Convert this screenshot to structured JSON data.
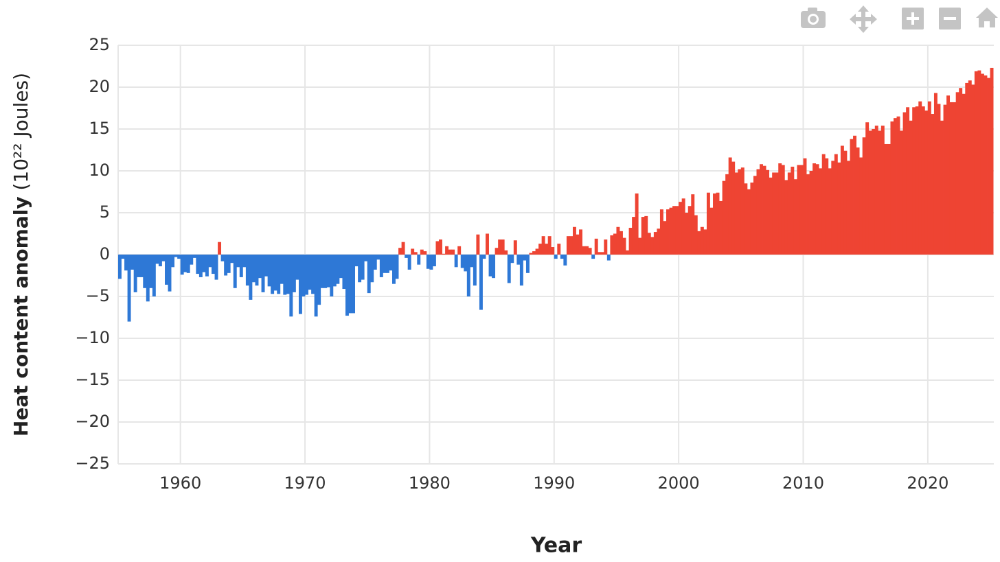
{
  "chart_data": {
    "type": "bar",
    "x_label": "Year",
    "y_label": "Heat content anomaly",
    "y_unit": "(10²² Joules)",
    "positive_color": "#ee4433",
    "negative_color": "#2e78d6",
    "grid": true,
    "xlim": [
      1955,
      2025.3
    ],
    "ylim": [
      -25,
      25
    ],
    "xticks": [
      1960,
      1970,
      1980,
      1990,
      2000,
      2010,
      2020
    ],
    "yticks": [
      {
        "value": -25,
        "label": "−25"
      },
      {
        "value": -20,
        "label": "−20"
      },
      {
        "value": -15,
        "label": "−15"
      },
      {
        "value": -10,
        "label": "−10"
      },
      {
        "value": -5,
        "label": "−5"
      },
      0,
      5,
      10,
      15,
      20,
      25
    ],
    "x": [
      1955.125,
      1955.375,
      1955.625,
      1955.875,
      1956.125,
      1956.375,
      1956.625,
      1956.875,
      1957.125,
      1957.375,
      1957.625,
      1957.875,
      1958.125,
      1958.375,
      1958.625,
      1958.875,
      1959.125,
      1959.375,
      1959.625,
      1959.875,
      1960.125,
      1960.375,
      1960.625,
      1960.875,
      1961.125,
      1961.375,
      1961.625,
      1961.875,
      1962.125,
      1962.375,
      1962.625,
      1962.875,
      1963.125,
      1963.375,
      1963.625,
      1963.875,
      1964.125,
      1964.375,
      1964.625,
      1964.875,
      1965.125,
      1965.375,
      1965.625,
      1965.875,
      1966.125,
      1966.375,
      1966.625,
      1966.875,
      1967.125,
      1967.375,
      1967.625,
      1967.875,
      1968.125,
      1968.375,
      1968.625,
      1968.875,
      1969.125,
      1969.375,
      1969.625,
      1969.875,
      1970.125,
      1970.375,
      1970.625,
      1970.875,
      1971.125,
      1971.375,
      1971.625,
      1971.875,
      1972.125,
      1972.375,
      1972.625,
      1972.875,
      1973.125,
      1973.375,
      1973.625,
      1973.875,
      1974.125,
      1974.375,
      1974.625,
      1974.875,
      1975.125,
      1975.375,
      1975.625,
      1975.875,
      1976.125,
      1976.375,
      1976.625,
      1976.875,
      1977.125,
      1977.375,
      1977.625,
      1977.875,
      1978.125,
      1978.375,
      1978.625,
      1978.875,
      1979.125,
      1979.375,
      1979.625,
      1979.875,
      1980.125,
      1980.375,
      1980.625,
      1980.875,
      1981.125,
      1981.375,
      1981.625,
      1981.875,
      1982.125,
      1982.375,
      1982.625,
      1982.875,
      1983.125,
      1983.375,
      1983.625,
      1983.875,
      1984.125,
      1984.375,
      1984.625,
      1984.875,
      1985.125,
      1985.375,
      1985.625,
      1985.875,
      1986.125,
      1986.375,
      1986.625,
      1986.875,
      1987.125,
      1987.375,
      1987.625,
      1987.875,
      1988.125,
      1988.375,
      1988.625,
      1988.875,
      1989.125,
      1989.375,
      1989.625,
      1989.875,
      1990.125,
      1990.375,
      1990.625,
      1990.875,
      1991.125,
      1991.375,
      1991.625,
      1991.875,
      1992.125,
      1992.375,
      1992.625,
      1992.875,
      1993.125,
      1993.375,
      1993.625,
      1993.875,
      1994.125,
      1994.375,
      1994.625,
      1994.875,
      1995.125,
      1995.375,
      1995.625,
      1995.875,
      1996.125,
      1996.375,
      1996.625,
      1996.875,
      1997.125,
      1997.375,
      1997.625,
      1997.875,
      1998.125,
      1998.375,
      1998.625,
      1998.875,
      1999.125,
      1999.375,
      1999.625,
      1999.875,
      2000.125,
      2000.375,
      2000.625,
      2000.875,
      2001.125,
      2001.375,
      2001.625,
      2001.875,
      2002.125,
      2002.375,
      2002.625,
      2002.875,
      2003.125,
      2003.375,
      2003.625,
      2003.875,
      2004.125,
      2004.375,
      2004.625,
      2004.875,
      2005.125,
      2005.375,
      2005.625,
      2005.875,
      2006.125,
      2006.375,
      2006.625,
      2006.875,
      2007.125,
      2007.375,
      2007.625,
      2007.875,
      2008.125,
      2008.375,
      2008.625,
      2008.875,
      2009.125,
      2009.375,
      2009.625,
      2009.875,
      2010.125,
      2010.375,
      2010.625,
      2010.875,
      2011.125,
      2011.375,
      2011.625,
      2011.875,
      2012.125,
      2012.375,
      2012.625,
      2012.875,
      2013.125,
      2013.375,
      2013.625,
      2013.875,
      2014.125,
      2014.375,
      2014.625,
      2014.875,
      2015.125,
      2015.375,
      2015.625,
      2015.875,
      2016.125,
      2016.375,
      2016.625,
      2016.875,
      2017.125,
      2017.375,
      2017.625,
      2017.875,
      2018.125,
      2018.375,
      2018.625,
      2018.875,
      2019.125,
      2019.375,
      2019.625,
      2019.875,
      2020.125,
      2020.375,
      2020.625,
      2020.875,
      2021.125,
      2021.375,
      2021.625,
      2021.875,
      2022.125,
      2022.375,
      2022.625,
      2022.875,
      2023.125,
      2023.375,
      2023.625,
      2023.875,
      2024.125,
      2024.375,
      2024.625,
      2024.875,
      2025.125
    ],
    "values": [
      -2.9,
      -0.5,
      -1.9,
      -8.0,
      -1.8,
      -4.5,
      -2.7,
      -2.7,
      -4.0,
      -5.6,
      -4.0,
      -5.0,
      -1.1,
      -1.4,
      -0.8,
      -3.6,
      -4.4,
      -1.5,
      -0.3,
      -0.5,
      -2.4,
      -2.1,
      -2.2,
      -1.2,
      -0.4,
      -2.3,
      -2.7,
      -2.1,
      -2.6,
      -1.5,
      -2.3,
      -3.0,
      1.5,
      -0.8,
      -2.5,
      -2.2,
      -1.0,
      -4.0,
      -1.5,
      -2.7,
      -1.5,
      -3.7,
      -5.4,
      -3.3,
      -3.7,
      -2.8,
      -4.5,
      -2.6,
      -3.8,
      -4.7,
      -4.3,
      -4.7,
      -3.5,
      -4.8,
      -4.7,
      -7.4,
      -4.5,
      -3.0,
      -7.1,
      -5.0,
      -4.8,
      -4.2,
      -4.7,
      -7.4,
      -6.0,
      -4.0,
      -4.0,
      -3.9,
      -5.0,
      -3.8,
      -3.5,
      -2.8,
      -4.1,
      -7.3,
      -7.0,
      -7.0,
      -1.4,
      -3.3,
      -3.0,
      -0.8,
      -4.6,
      -3.3,
      -1.8,
      -0.6,
      -2.7,
      -2.2,
      -2.2,
      -1.9,
      -3.5,
      -2.9,
      0.8,
      1.5,
      -0.4,
      -1.8,
      0.7,
      0.3,
      -1.2,
      0.6,
      0.4,
      -1.7,
      -1.8,
      -1.4,
      1.6,
      1.8,
      0.1,
      1.0,
      0.6,
      0.6,
      -1.5,
      1.0,
      -1.6,
      -2.0,
      -5.0,
      -1.5,
      -3.7,
      2.4,
      -6.6,
      -0.5,
      2.5,
      -2.6,
      -2.8,
      0.8,
      1.8,
      1.8,
      0.5,
      -3.4,
      -1.0,
      1.7,
      -1.2,
      -3.7,
      -0.7,
      -2.2,
      0.2,
      0.4,
      0.7,
      1.3,
      2.2,
      1.3,
      2.2,
      0.9,
      -0.5,
      1.3,
      -0.5,
      -1.3,
      2.2,
      2.2,
      3.3,
      2.4,
      3.0,
      1.0,
      1.0,
      0.8,
      -0.5,
      1.9,
      0.3,
      0.3,
      1.8,
      -0.7,
      2.3,
      2.5,
      3.3,
      2.8,
      2.0,
      0.5,
      3.2,
      4.5,
      7.3,
      2.0,
      4.5,
      4.6,
      2.6,
      2.1,
      2.7,
      3.1,
      5.4,
      4.0,
      5.4,
      5.6,
      5.8,
      5.8,
      6.3,
      6.7,
      5.0,
      5.8,
      7.2,
      4.7,
      2.8,
      3.3,
      3.0,
      7.4,
      5.6,
      7.3,
      7.4,
      6.4,
      8.8,
      9.6,
      11.6,
      11.1,
      9.8,
      10.2,
      10.4,
      8.5,
      7.8,
      8.6,
      9.4,
      10.2,
      10.8,
      10.6,
      10.1,
      9.2,
      9.8,
      9.8,
      10.9,
      10.7,
      8.9,
      9.8,
      10.5,
      9.0,
      10.7,
      10.7,
      11.5,
      9.6,
      10.0,
      10.9,
      10.8,
      10.3,
      12.0,
      11.5,
      10.3,
      11.2,
      12.0,
      11.0,
      13.0,
      12.4,
      11.2,
      13.8,
      14.2,
      12.8,
      11.6,
      14.0,
      15.8,
      14.8,
      15.0,
      15.4,
      14.8,
      15.4,
      13.2,
      13.2,
      15.9,
      16.3,
      16.5,
      14.8,
      17.0,
      17.6,
      16.0,
      17.6,
      17.7,
      18.3,
      17.7,
      17.2,
      18.3,
      16.8,
      19.3,
      18.0,
      16.0,
      17.9,
      19.0,
      18.2,
      18.2,
      19.4,
      19.9,
      19.2,
      20.5,
      20.8,
      20.3,
      21.9,
      22.0,
      21.6,
      21.4,
      21.1,
      22.3
    ]
  }
}
